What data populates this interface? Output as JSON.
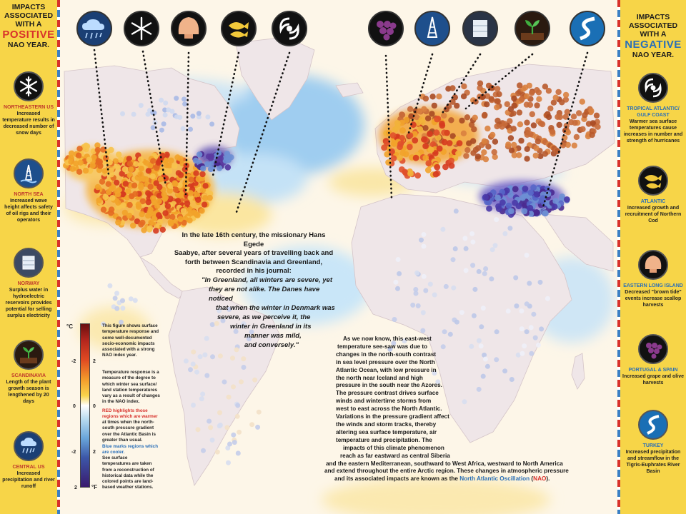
{
  "left_panel": {
    "heading_line1": "IMPACTS",
    "heading_line2": "ASSOCIATED",
    "heading_line3": "WITH A",
    "heading_big": "POSITIVE",
    "heading_line4": "NAO YEAR.",
    "items": [
      {
        "icon": "snowflake-icon",
        "title": "NORTHEASTERN US",
        "desc": "Increased temperature results in decreased number of snow days"
      },
      {
        "icon": "oil-rig-icon",
        "title": "NORTH SEA",
        "desc": "Increased wave height affects safety of oil rigs and their operators"
      },
      {
        "icon": "dam-icon",
        "title": "NORWAY",
        "desc": "Surplus water in hydroelectric reservoirs provides potential for selling surplus electricity"
      },
      {
        "icon": "sprout-icon",
        "title": "SCANDINAVIA",
        "desc": "Length of the plant growth season is lengthened by 20 days"
      },
      {
        "icon": "rain-cloud-icon",
        "title": "CENTRAL US",
        "desc": "Increased precipitation and river runoff"
      }
    ]
  },
  "right_panel": {
    "heading_line1": "IMPACTS",
    "heading_line2": "ASSOCIATED",
    "heading_line3": "WITH A",
    "heading_big": "NEGATIVE",
    "heading_line4": "NAO YEAR.",
    "items": [
      {
        "icon": "hurricane-icon",
        "title": "TROPICAL ATLANTIC/ GULF COAST",
        "desc": "Warmer sea surface temperatures cause increases in number and strength of hurricanes"
      },
      {
        "icon": "fish-icon",
        "title": "ATLANTIC",
        "desc": "Increased growth and recruitment of Northern Cod"
      },
      {
        "icon": "scallop-icon",
        "title": "EASTERN LONG ISLAND",
        "desc": "Decreased \"brown tide\" events increase scallop harvests"
      },
      {
        "icon": "grapes-icon",
        "title": "PORTUGAL & SPAIN",
        "desc": "Increased grape and olive harvests"
      },
      {
        "icon": "river-icon",
        "title": "TURKEY",
        "desc": "Increased precipitation and streamflow in the Tigris-Euphrates River Basin"
      }
    ]
  },
  "story": {
    "intro_lines": [
      "In the late 16th century, the missionary Hans Egede",
      "Saabye, after several years of travelling back and",
      "forth between Scandinavia and Greenland,",
      "recorded in his journal:"
    ],
    "quote_lines": [
      "\"In Greenland, all winters are severe, yet",
      "they are not alike. The Danes have noticed",
      "that when the winter in Denmark was",
      "severe, as we perceive it, the",
      "winter in Greenland in its",
      "manner was mild,",
      "and conversely.\""
    ]
  },
  "explanation": {
    "lines": [
      "As we now know, this east-west",
      "temperature see-saw was due to",
      "changes in the north-south contrast",
      "in sea level pressure over the North",
      "Atlantic Ocean, with low pressure in",
      "the north near Iceland and high",
      "pressure in the south near the Azores.",
      "The pressure contrast drives surface",
      "winds and wintertime storms from",
      "west to east across the North Atlantic.",
      "Variations in the pressure gradient affect",
      "the winds and storm tracks, thereby",
      "altering sea surface temperature, air",
      "temperature and precipitation. The",
      "impacts of this climate phenomenon",
      "reach as far eastward as central Siberia",
      "and the eastern Mediterranean, southward to West Africa, westward to North America",
      "and extend throughout the entire Arctic region. These changes in atmospheric pressure"
    ],
    "last_line_prefix": "and its associated impacts are known as the",
    "last_line_term": "North Atlantic Oscillation",
    "last_line_abbr": "NAO",
    "term_color": "#2a6fb8",
    "abbr_color": "#d8312b"
  },
  "legend": {
    "unit_top": "°C",
    "unit_bottom": "°F",
    "ticks": [
      "2",
      "-2",
      "0",
      "-2",
      "2"
    ],
    "mid_ticks": [
      "2",
      "0",
      "2"
    ],
    "para1": [
      "This figure shows surface",
      "temperature response and",
      "some well-documented",
      "socio-economic impacts",
      "associated with a strong",
      "NAO index year."
    ],
    "para2": [
      "Temperature response is a",
      "measure of the degree to",
      "which winter sea surface/",
      "land station temperatures",
      "vary as a result of changes",
      "in the NAO index."
    ],
    "para3_red": [
      "RED highlights those",
      "regions which are warmer",
      "at times when the north-",
      "south pressure gradient",
      "over the Atlantic Basin is",
      "greater than usual."
    ],
    "para4_blue": [
      "Blue marks regions which",
      "are cooler."
    ],
    "para4_rest": [
      "See surface",
      "temperatures are taken",
      "from a reconstruction of",
      "historical data while the",
      "colored points are land-",
      "based weather stations."
    ],
    "red_color": "#d8312b",
    "blue_color": "#2a6fb8"
  },
  "top_icons": [
    "rain-cloud-icon",
    "snowflake-icon",
    "scallop-icon",
    "fish-icon",
    "hurricane-icon",
    "grapes-icon",
    "oil-rig-icon",
    "dam-icon",
    "sprout-icon",
    "river-icon"
  ],
  "colors": {
    "panel": "#f7d548",
    "ocean_warm": "#fbe9a8",
    "ocean_cool": "#bfe0f5",
    "land": "#f1eaea",
    "warm_dot": "#f2a32a",
    "hot_dot": "#d63b1f",
    "cool_dot": "#6d8fd4",
    "cold_dot": "#4a2a90"
  }
}
